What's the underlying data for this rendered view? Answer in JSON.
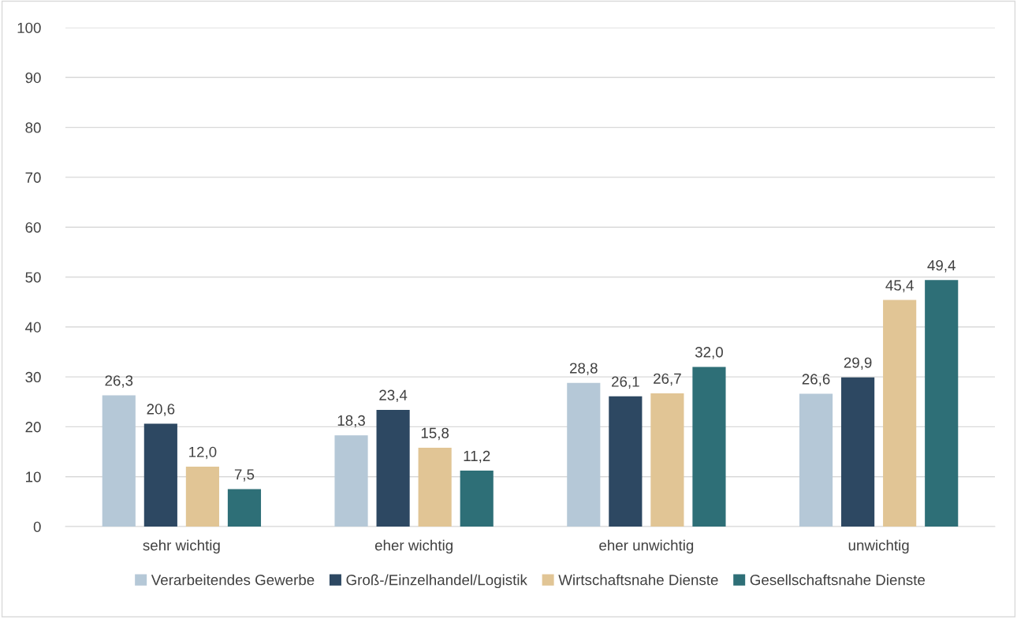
{
  "chart_data": {
    "type": "bar",
    "categories": [
      "sehr wichtig",
      "eher wichtig",
      "eher unwichtig",
      "unwichtig"
    ],
    "series": [
      {
        "name": "Verarbeitendes Gewerbe",
        "color": "#b5c8d7",
        "values": [
          26.3,
          18.3,
          28.8,
          26.6
        ],
        "value_labels": [
          "26,3",
          "18,3",
          "28,8",
          "26,6"
        ]
      },
      {
        "name": "Groß-/Einzelhandel/Logistik",
        "color": "#2d4862",
        "values": [
          20.6,
          23.4,
          26.1,
          29.9
        ],
        "value_labels": [
          "20,6",
          "23,4",
          "26,1",
          "29,9"
        ]
      },
      {
        "name": "Wirtschaftsnahe Dienste",
        "color": "#e1c595",
        "values": [
          12.0,
          15.8,
          26.7,
          45.4
        ],
        "value_labels": [
          "12,0",
          "15,8",
          "26,7",
          "45,4"
        ]
      },
      {
        "name": "Gesellschaftsnahe Dienste",
        "color": "#2e6f77",
        "values": [
          7.5,
          11.2,
          32.0,
          49.4
        ],
        "value_labels": [
          "7,5",
          "11,2",
          "32,0",
          "49,4"
        ]
      }
    ],
    "ylim": [
      0,
      100
    ],
    "yticks": [
      0,
      10,
      20,
      30,
      40,
      50,
      60,
      70,
      80,
      90,
      100
    ],
    "grid": "y",
    "legend": "bottom"
  }
}
